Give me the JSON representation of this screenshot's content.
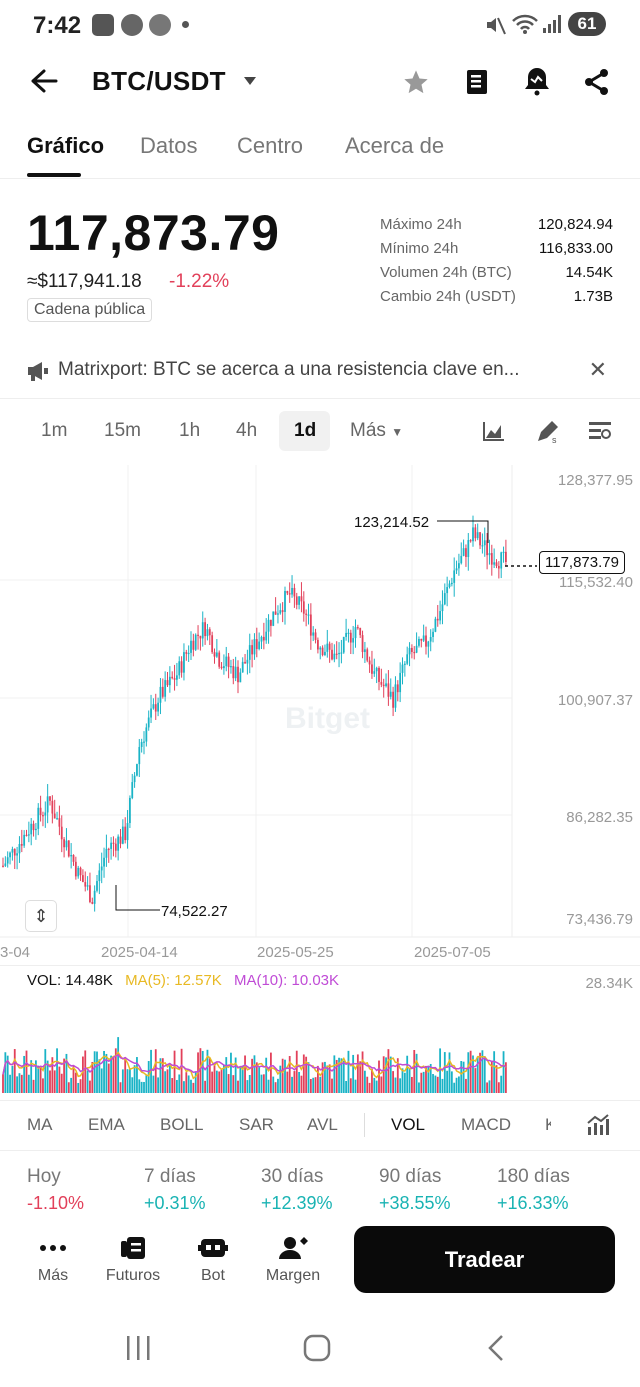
{
  "status_bar": {
    "time": "7:42",
    "battery": "61"
  },
  "header": {
    "pair": "BTC/USDT"
  },
  "tabs": [
    "Gráfico",
    "Datos",
    "Centro",
    "Acerca de"
  ],
  "ticker": {
    "price": "117,873.79",
    "approx_usd": "≈$117,941.18",
    "change": "-1.22%",
    "chain_label": "Cadena pública",
    "stats": [
      {
        "label": "Máximo 24h",
        "value": "120,824.94"
      },
      {
        "label": "Mínimo 24h",
        "value": "116,833.00"
      },
      {
        "label": "Volumen 24h (BTC)",
        "value": "14.54K"
      },
      {
        "label": "Cambio 24h (USDT)",
        "value": "1.73B"
      }
    ]
  },
  "news": {
    "text": "Matrixport: BTC se acerca a una resistencia clave en..."
  },
  "timeframes": [
    "1m",
    "15m",
    "1h",
    "4h",
    "1d",
    "Más"
  ],
  "active_timeframe": "1d",
  "chart": {
    "y_ticks": [
      "128,377.95",
      "115,532.40",
      "100,907.37",
      "86,282.35",
      "73,436.79"
    ],
    "x_ticks": [
      "3-04",
      "2025-04-14",
      "2025-05-25",
      "2025-07-05"
    ],
    "last_price_tag": "117,873.79",
    "high_label": "123,214.52",
    "low_label": "74,522.27",
    "watermark": "Bitget"
  },
  "volume": {
    "vol_label": "VOL: 14.48K",
    "ma5_label": "MA(5): 12.57K",
    "ma10_label": "MA(10): 10.03K",
    "y_max": "28.34K"
  },
  "indicators": [
    "MA",
    "EMA",
    "BOLL",
    "SAR",
    "AVL",
    "VOL",
    "MACD",
    "K"
  ],
  "active_indicator": "VOL",
  "performance": [
    {
      "label": "Hoy",
      "value": "-1.10%",
      "color": "#e2405a"
    },
    {
      "label": "7 días",
      "value": "+0.31%",
      "color": "#19b3b3"
    },
    {
      "label": "30 días",
      "value": "+12.39%",
      "color": "#19b3b3"
    },
    {
      "label": "90 días",
      "value": "+38.55%",
      "color": "#19b3b3"
    },
    {
      "label": "180 días",
      "value": "+16.33%",
      "color": "#19b3b3"
    }
  ],
  "bottom_nav": [
    {
      "label": "Más",
      "icon": "dots-icon"
    },
    {
      "label": "Futuros",
      "icon": "futures-icon"
    },
    {
      "label": "Bot",
      "icon": "bot-icon"
    },
    {
      "label": "Margen",
      "icon": "margin-icon"
    }
  ],
  "trade_button": "Tradear",
  "colors": {
    "up": "#19b3c6",
    "down": "#e2405a",
    "ma5": "#e8b923",
    "ma10": "#c04bd6"
  }
}
